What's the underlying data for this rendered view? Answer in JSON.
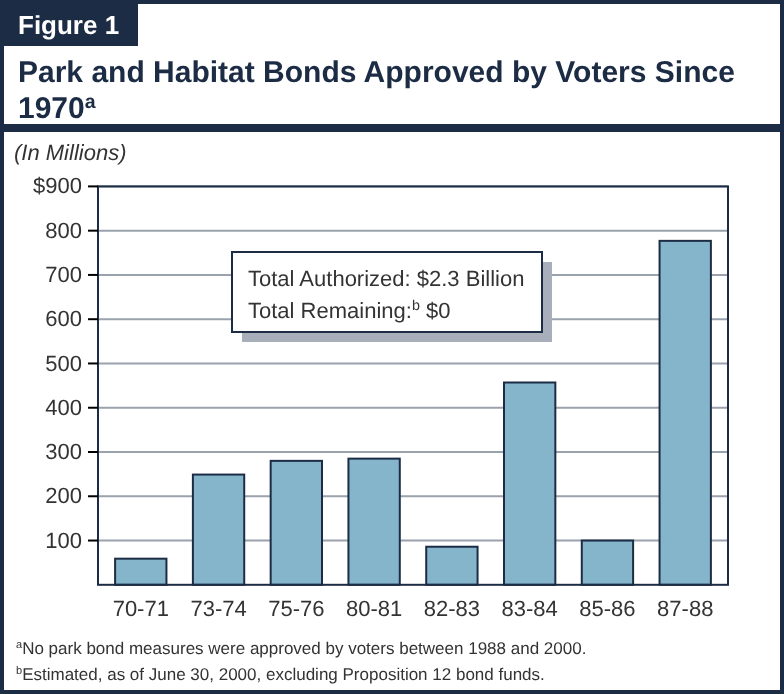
{
  "chart_data": {
    "type": "bar",
    "title": "Park and Habitat Bonds Approved by Voters Since 1970$^{a}$",
    "ylabel": "(In Millions)",
    "categories": [
      "70-71",
      "73-74",
      "75-76",
      "80-81",
      "82-83",
      "83-84",
      "85-86",
      "87-88"
    ],
    "values": [
      59,
      249,
      280,
      285,
      86,
      457,
      100,
      777
    ],
    "color": "#84b5cb",
    "ylim": [
      0,
      900
    ],
    "yticks": [
      100,
      200,
      300,
      400,
      500,
      600,
      700,
      800,
      {
        "value": 900,
        "label": "$900"
      }
    ],
    "grid": "y",
    "annotations": [
      "Figure 1",
      "Total Authorized: $2.3 Billion",
      "Total Remaining:$^{b}$ $0",
      "$^{a}$No park bond measures were approved by voters between 1988 and 2000.",
      "$^{b}$Estimated, as of June 30, 2000, excluding Proposition 12 bond funds."
    ]
  }
}
